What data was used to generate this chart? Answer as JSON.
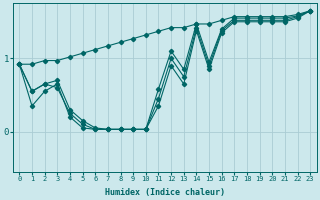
{
  "xlabel": "Humidex (Indice chaleur)",
  "bg_color": "#cce8ec",
  "line_color": "#006666",
  "grid_color": "#aaccd4",
  "xlim": [
    -0.5,
    23.5
  ],
  "ylim": [
    -0.55,
    1.75
  ],
  "yticks": [
    0,
    1
  ],
  "xticks": [
    0,
    1,
    2,
    3,
    4,
    5,
    6,
    7,
    8,
    9,
    10,
    11,
    12,
    13,
    14,
    15,
    16,
    17,
    18,
    19,
    20,
    21,
    22,
    23
  ],
  "lines": [
    {
      "x": [
        0,
        1,
        2,
        3,
        4,
        5,
        6,
        7,
        8,
        9,
        10,
        11,
        12,
        13,
        14,
        15,
        16,
        17,
        18,
        19,
        20,
        21,
        22,
        23
      ],
      "y": [
        0.92,
        0.92,
        0.97,
        0.97,
        1.02,
        1.07,
        1.12,
        1.17,
        1.22,
        1.27,
        1.32,
        1.37,
        1.42,
        1.42,
        1.47,
        1.47,
        1.52,
        1.57,
        1.57,
        1.57,
        1.57,
        1.57,
        1.6,
        1.65
      ]
    },
    {
      "x": [
        0,
        1,
        2,
        3,
        4,
        5,
        6,
        7,
        8,
        9,
        10,
        11,
        12,
        13,
        14,
        15,
        16,
        17,
        18,
        19,
        20,
        21,
        22,
        23
      ],
      "y": [
        0.92,
        0.55,
        0.65,
        0.7,
        0.3,
        0.15,
        0.05,
        0.03,
        0.03,
        0.03,
        0.03,
        0.58,
        1.1,
        0.85,
        1.47,
        0.95,
        1.4,
        1.55,
        1.55,
        1.55,
        1.55,
        1.55,
        1.58,
        1.65
      ]
    },
    {
      "x": [
        0,
        1,
        2,
        3,
        4,
        5,
        6,
        7,
        8,
        9,
        10,
        11,
        12,
        13,
        14,
        15,
        16,
        17,
        18,
        19,
        20,
        21,
        22,
        23
      ],
      "y": [
        0.92,
        0.35,
        0.55,
        0.65,
        0.2,
        0.05,
        0.03,
        0.03,
        0.03,
        0.03,
        0.03,
        0.35,
        0.9,
        0.65,
        1.38,
        0.85,
        1.35,
        1.5,
        1.5,
        1.5,
        1.5,
        1.5,
        1.55,
        1.65
      ]
    },
    {
      "x": [
        0,
        1,
        2,
        3,
        4,
        5,
        6,
        7,
        8,
        9,
        10,
        11,
        12,
        13,
        14,
        15,
        16,
        17,
        18,
        19,
        20,
        21,
        22,
        23
      ],
      "y": [
        0.92,
        0.55,
        0.65,
        0.6,
        0.25,
        0.1,
        0.03,
        0.03,
        0.03,
        0.03,
        0.03,
        0.45,
        1.0,
        0.75,
        1.42,
        0.9,
        1.38,
        1.52,
        1.52,
        1.52,
        1.52,
        1.52,
        1.57,
        1.65
      ]
    }
  ]
}
